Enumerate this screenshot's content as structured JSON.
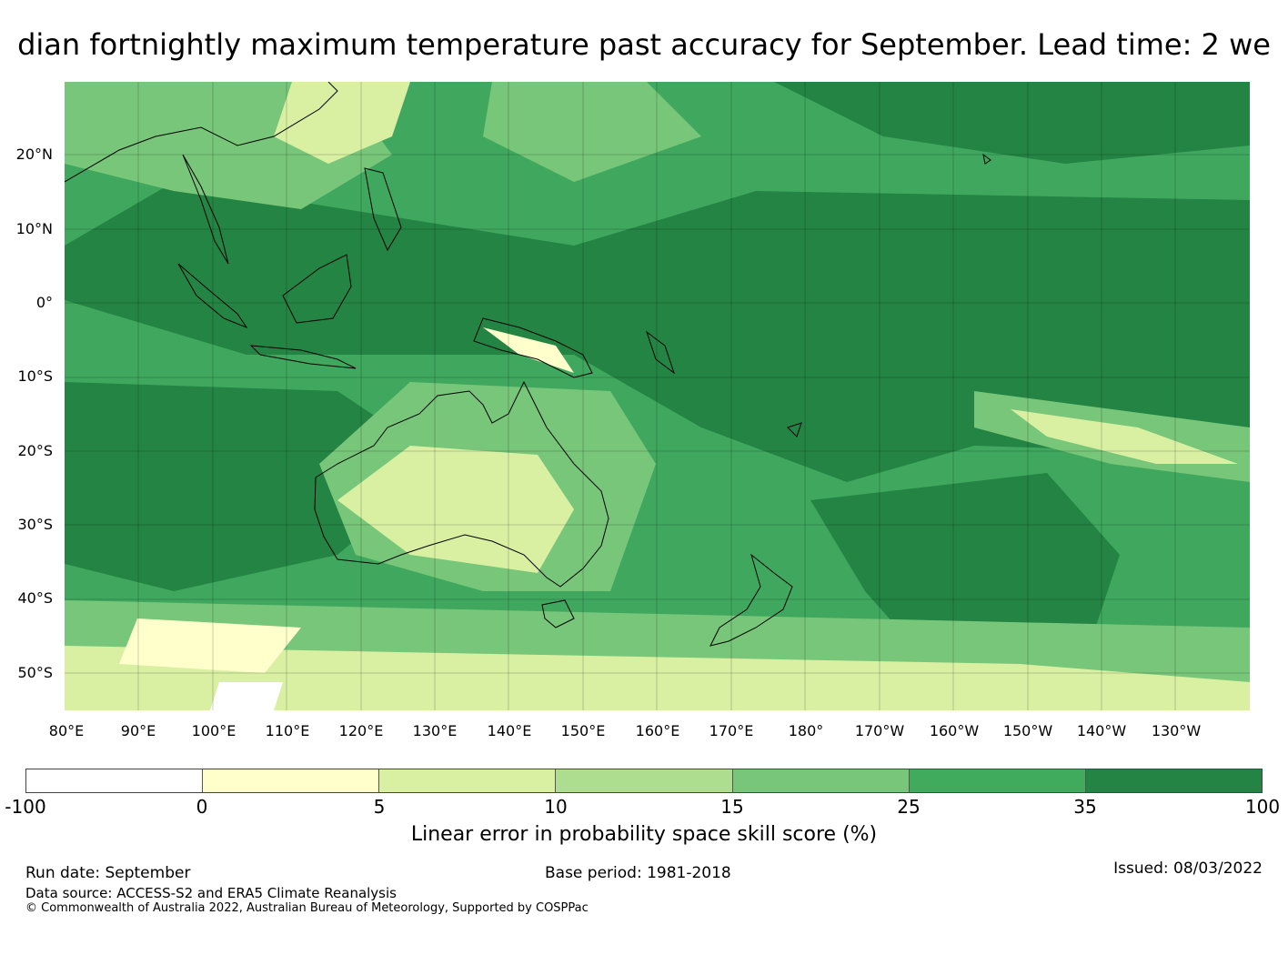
{
  "title": "dian fortnightly maximum temperature past accuracy for September. Lead time: 2 we",
  "map": {
    "lat_labels": [
      "20°N",
      "10°N",
      "0°",
      "10°S",
      "20°S",
      "30°S",
      "40°S",
      "50°S"
    ],
    "lon_labels": [
      "80°E",
      "90°E",
      "100°E",
      "110°E",
      "120°E",
      "130°E",
      "140°E",
      "150°E",
      "160°E",
      "170°E",
      "180°",
      "170°W",
      "160°W",
      "150°W",
      "140°W",
      "130°W"
    ],
    "lon_range": [
      80,
      240
    ],
    "lat_range": [
      -55,
      30
    ]
  },
  "legend": {
    "ticks": [
      "-100",
      "0",
      "5",
      "10",
      "15",
      "25",
      "35",
      "100"
    ],
    "colors": [
      "#ffffff",
      "#ffffcc",
      "#d9f0a3",
      "#addd8e",
      "#78c679",
      "#41ab5d",
      "#238443"
    ],
    "label": "Linear error in probability space skill score (%)"
  },
  "footer": {
    "run_date": "Run date: September",
    "base_period": "Base period: 1981-2018",
    "issued": "Issued: 08/03/2022",
    "data_source": "Data source: ACCESS-S2 and ERA5 Climate Reanalysis",
    "copyright": "© Commonwealth of Australia 2022, Australian Bureau of Meteorology, Supported by COSPPac"
  }
}
